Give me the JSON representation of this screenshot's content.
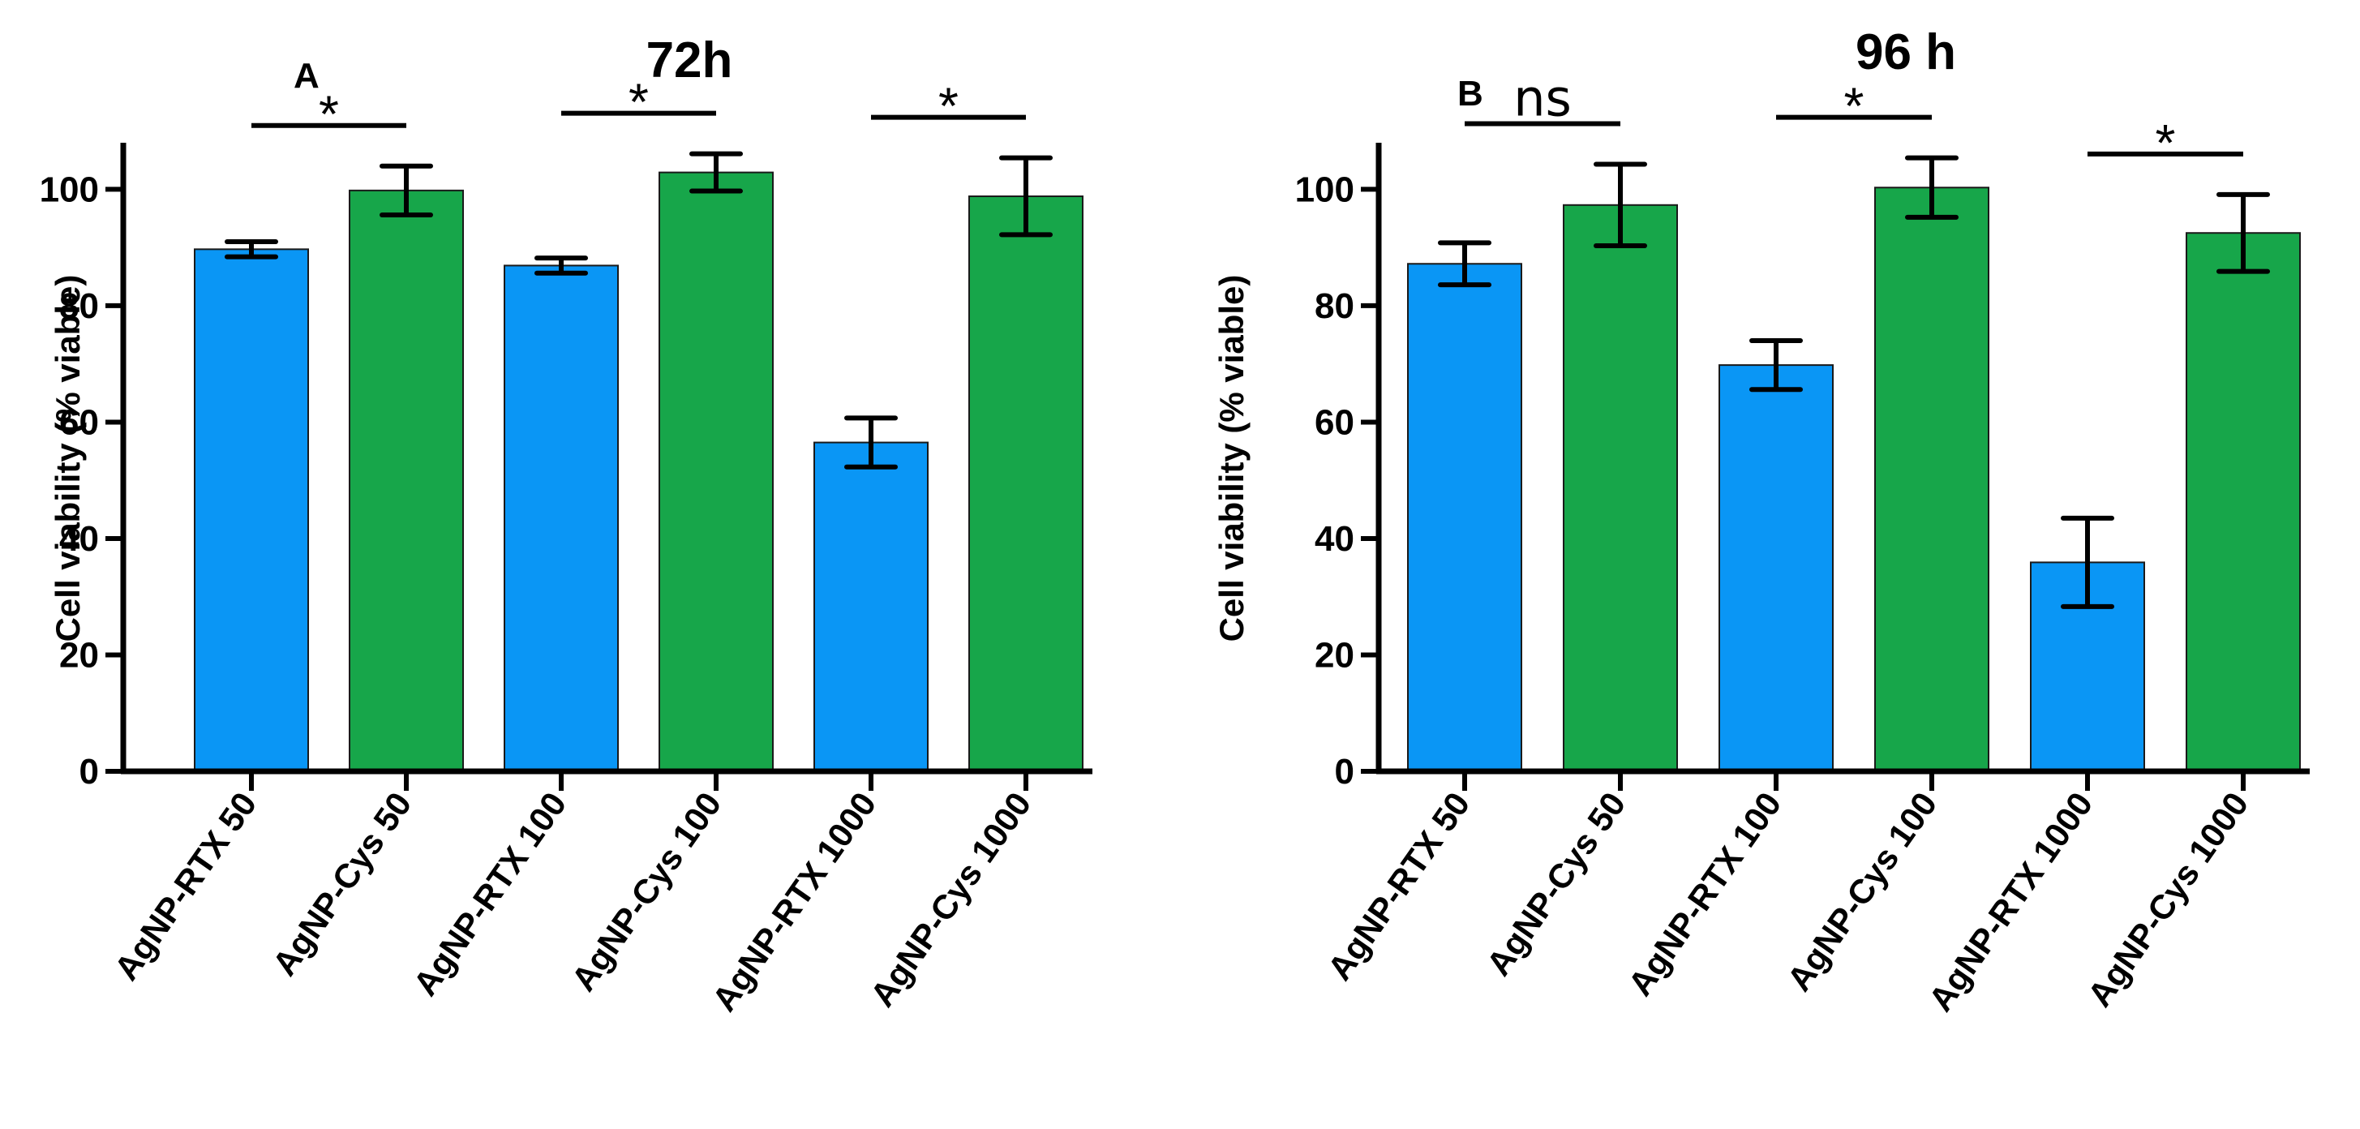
{
  "chart_data": [
    {
      "type": "bar",
      "panel": "A",
      "title": "72h",
      "ylabel": "Cell viability (% viable)",
      "xlabel": "",
      "ylim": [
        0,
        108
      ],
      "yticks": [
        0,
        20,
        40,
        60,
        80,
        100
      ],
      "categories": [
        "AgNP-RTX 50",
        "AgNP-Cys 50",
        "AgNP-RTX 100",
        "AgNP-Cys 100",
        "AgNP-RTX 1000",
        "AgNP-Cys 1000"
      ],
      "values": [
        89.7,
        99.8,
        86.9,
        102.9,
        56.5,
        98.8
      ],
      "errors": [
        1.3,
        4.2,
        1.3,
        3.2,
        4.2,
        6.6
      ],
      "bar_colors": [
        "#0a96f5",
        "#17a64a",
        "#0a96f5",
        "#17a64a",
        "#0a96f5",
        "#17a64a"
      ],
      "significance": [
        {
          "pair": [
            0,
            1
          ],
          "label": "*"
        },
        {
          "pair": [
            2,
            3
          ],
          "label": "*"
        },
        {
          "pair": [
            4,
            5
          ],
          "label": "*"
        }
      ]
    },
    {
      "type": "bar",
      "panel": "B",
      "title": "96 h",
      "ylabel": "Cell viability (% viable)",
      "xlabel": "",
      "ylim": [
        0,
        108
      ],
      "yticks": [
        0,
        20,
        40,
        60,
        80,
        100
      ],
      "categories": [
        "AgNP-RTX 50",
        "AgNP-Cys 50",
        "AgNP-RTX 100",
        "AgNP-Cys 100",
        "AgNP-RTX 1000",
        "AgNP-Cys 1000"
      ],
      "values": [
        87.2,
        97.3,
        69.8,
        100.3,
        35.9,
        92.5
      ],
      "errors": [
        3.6,
        7.0,
        4.2,
        5.1,
        7.6,
        6.6
      ],
      "bar_colors": [
        "#0a96f5",
        "#17a64a",
        "#0a96f5",
        "#17a64a",
        "#0a96f5",
        "#17a64a"
      ],
      "significance": [
        {
          "pair": [
            0,
            1
          ],
          "label": "ns"
        },
        {
          "pair": [
            2,
            3
          ],
          "label": "*"
        },
        {
          "pair": [
            4,
            5
          ],
          "label": "*"
        }
      ]
    }
  ]
}
